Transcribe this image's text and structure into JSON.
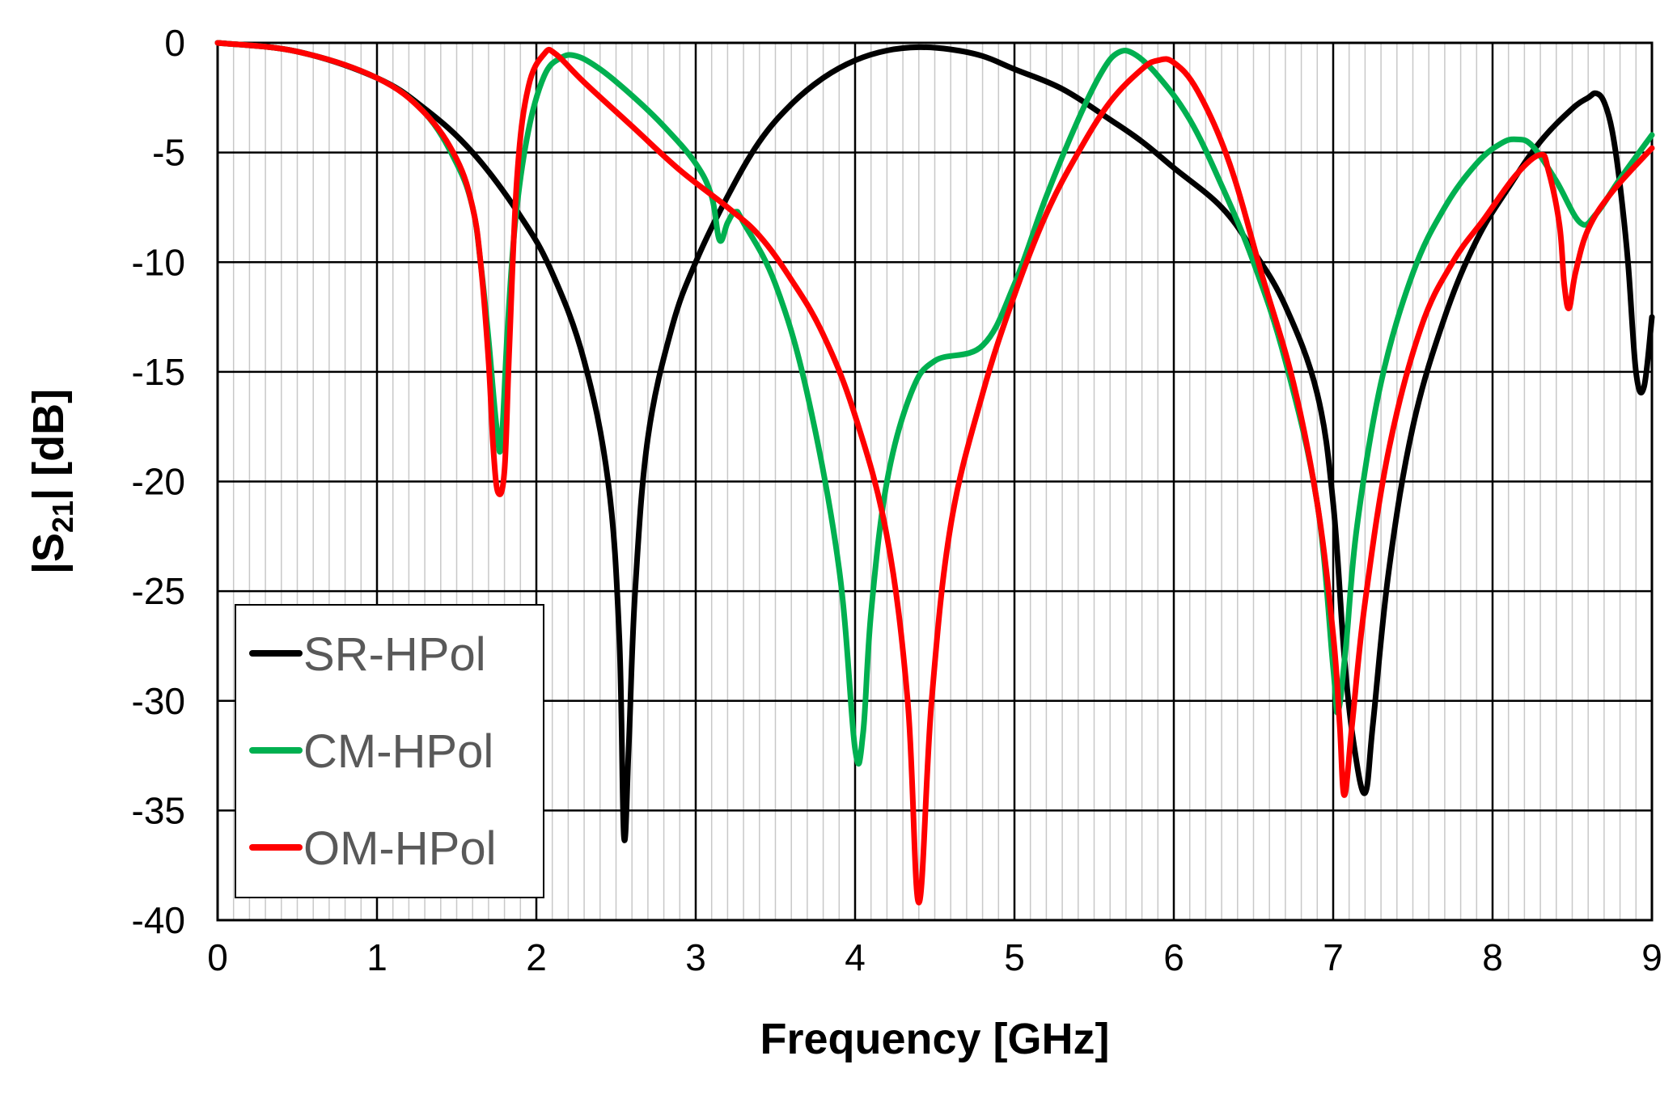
{
  "chart_data": {
    "type": "line",
    "xlabel": "Frequency [GHz]",
    "ylabel": {
      "prefix": "|S",
      "subscript": "21",
      "suffix": "| [dB]"
    },
    "xlim": [
      0,
      9
    ],
    "ylim": [
      -40,
      0
    ],
    "x_major_step": 1,
    "x_minor_step": 0.1,
    "y_major_step": 5,
    "x_ticks": [
      "0",
      "1",
      "2",
      "3",
      "4",
      "5",
      "6",
      "7",
      "8",
      "9"
    ],
    "y_ticks": [
      "0",
      "-5",
      "-10",
      "-15",
      "-20",
      "-25",
      "-30",
      "-35",
      "-40"
    ],
    "grid": true,
    "legend_position": "bottom-left",
    "series": [
      {
        "name": "SR-HPol",
        "color": "#000000",
        "points": [
          [
            0,
            0
          ],
          [
            0.5,
            -0.4
          ],
          [
            1,
            -1.6
          ],
          [
            1.3,
            -3
          ],
          [
            1.6,
            -5
          ],
          [
            1.9,
            -7.9
          ],
          [
            2.1,
            -10.5
          ],
          [
            2.3,
            -14.5
          ],
          [
            2.45,
            -20
          ],
          [
            2.52,
            -27
          ],
          [
            2.55,
            -36.2
          ],
          [
            2.58,
            -32
          ],
          [
            2.62,
            -25
          ],
          [
            2.7,
            -18
          ],
          [
            2.85,
            -13
          ],
          [
            3.0,
            -10
          ],
          [
            3.2,
            -7
          ],
          [
            3.4,
            -4.5
          ],
          [
            3.6,
            -2.8
          ],
          [
            3.8,
            -1.6
          ],
          [
            4.0,
            -0.8
          ],
          [
            4.2,
            -0.35
          ],
          [
            4.4,
            -0.2
          ],
          [
            4.6,
            -0.3
          ],
          [
            4.8,
            -0.6
          ],
          [
            5.0,
            -1.2
          ],
          [
            5.3,
            -2.1
          ],
          [
            5.6,
            -3.5
          ],
          [
            5.8,
            -4.5
          ],
          [
            6.0,
            -5.7
          ],
          [
            6.3,
            -7.5
          ],
          [
            6.5,
            -9.5
          ],
          [
            6.7,
            -12
          ],
          [
            6.9,
            -16
          ],
          [
            7.0,
            -21
          ],
          [
            7.07,
            -28
          ],
          [
            7.13,
            -32
          ],
          [
            7.2,
            -34.2
          ],
          [
            7.25,
            -31
          ],
          [
            7.35,
            -24
          ],
          [
            7.5,
            -17.5
          ],
          [
            7.7,
            -12.5
          ],
          [
            7.9,
            -9
          ],
          [
            8.1,
            -6.6
          ],
          [
            8.3,
            -4.5
          ],
          [
            8.5,
            -3
          ],
          [
            8.6,
            -2.5
          ],
          [
            8.65,
            -2.3
          ],
          [
            8.7,
            -2.7
          ],
          [
            8.75,
            -4
          ],
          [
            8.8,
            -6.5
          ],
          [
            8.85,
            -10
          ],
          [
            8.9,
            -15
          ],
          [
            8.95,
            -15.7
          ],
          [
            9.0,
            -12.5
          ]
        ]
      },
      {
        "name": "CM-HPol",
        "color": "#00b050",
        "points": [
          [
            0,
            0
          ],
          [
            0.5,
            -0.4
          ],
          [
            1,
            -1.6
          ],
          [
            1.3,
            -3.2
          ],
          [
            1.5,
            -5.5
          ],
          [
            1.6,
            -7.5
          ],
          [
            1.65,
            -10
          ],
          [
            1.7,
            -13.5
          ],
          [
            1.75,
            -17.5
          ],
          [
            1.78,
            -18.3
          ],
          [
            1.82,
            -13
          ],
          [
            1.87,
            -8
          ],
          [
            1.95,
            -4
          ],
          [
            2.05,
            -1.5
          ],
          [
            2.15,
            -0.7
          ],
          [
            2.25,
            -0.6
          ],
          [
            2.4,
            -1.2
          ],
          [
            2.6,
            -2.4
          ],
          [
            2.8,
            -3.8
          ],
          [
            3.0,
            -5.5
          ],
          [
            3.1,
            -7
          ],
          [
            3.15,
            -9
          ],
          [
            3.2,
            -8.2
          ],
          [
            3.25,
            -7.7
          ],
          [
            3.3,
            -8.2
          ],
          [
            3.5,
            -11
          ],
          [
            3.7,
            -16
          ],
          [
            3.9,
            -24
          ],
          [
            4.0,
            -32.2
          ],
          [
            4.05,
            -31.5
          ],
          [
            4.1,
            -26
          ],
          [
            4.2,
            -20
          ],
          [
            4.35,
            -16
          ],
          [
            4.5,
            -14.5
          ],
          [
            4.8,
            -13.8
          ],
          [
            5.0,
            -11
          ],
          [
            5.2,
            -7
          ],
          [
            5.4,
            -3.5
          ],
          [
            5.55,
            -1.3
          ],
          [
            5.65,
            -0.45
          ],
          [
            5.75,
            -0.5
          ],
          [
            5.9,
            -1.5
          ],
          [
            6.1,
            -3.5
          ],
          [
            6.3,
            -6.5
          ],
          [
            6.5,
            -10
          ],
          [
            6.7,
            -14.5
          ],
          [
            6.9,
            -21
          ],
          [
            7.0,
            -28.5
          ],
          [
            7.03,
            -30.5
          ],
          [
            7.08,
            -27.5
          ],
          [
            7.15,
            -22
          ],
          [
            7.3,
            -15.5
          ],
          [
            7.5,
            -10.5
          ],
          [
            7.7,
            -7.5
          ],
          [
            7.9,
            -5.5
          ],
          [
            8.05,
            -4.6
          ],
          [
            8.15,
            -4.4
          ],
          [
            8.25,
            -4.7
          ],
          [
            8.4,
            -6.3
          ],
          [
            8.55,
            -8.2
          ],
          [
            8.65,
            -7.8
          ],
          [
            8.8,
            -6.2
          ],
          [
            9.0,
            -4.2
          ]
        ]
      },
      {
        "name": "OM-HPol",
        "color": "#ff0000",
        "points": [
          [
            0,
            0
          ],
          [
            0.5,
            -0.4
          ],
          [
            1,
            -1.6
          ],
          [
            1.3,
            -3.2
          ],
          [
            1.5,
            -5.3
          ],
          [
            1.6,
            -7.5
          ],
          [
            1.65,
            -10
          ],
          [
            1.7,
            -14.5
          ],
          [
            1.73,
            -18.5
          ],
          [
            1.76,
            -20.5
          ],
          [
            1.8,
            -19.5
          ],
          [
            1.83,
            -14
          ],
          [
            1.88,
            -6
          ],
          [
            1.95,
            -2
          ],
          [
            2.05,
            -0.5
          ],
          [
            2.12,
            -0.5
          ],
          [
            2.3,
            -1.8
          ],
          [
            2.6,
            -3.8
          ],
          [
            2.9,
            -5.8
          ],
          [
            3.2,
            -7.5
          ],
          [
            3.4,
            -8.8
          ],
          [
            3.6,
            -10.8
          ],
          [
            3.8,
            -13.3
          ],
          [
            4.0,
            -17
          ],
          [
            4.2,
            -22.5
          ],
          [
            4.33,
            -30
          ],
          [
            4.4,
            -39.2
          ],
          [
            4.48,
            -30
          ],
          [
            4.6,
            -22
          ],
          [
            4.8,
            -16
          ],
          [
            5.0,
            -11.5
          ],
          [
            5.2,
            -7.8
          ],
          [
            5.4,
            -5
          ],
          [
            5.6,
            -2.7
          ],
          [
            5.8,
            -1.2
          ],
          [
            5.9,
            -0.8
          ],
          [
            6.0,
            -0.9
          ],
          [
            6.15,
            -2.2
          ],
          [
            6.35,
            -5.5
          ],
          [
            6.55,
            -10.5
          ],
          [
            6.75,
            -15.5
          ],
          [
            6.9,
            -21
          ],
          [
            7.0,
            -27
          ],
          [
            7.04,
            -31
          ],
          [
            7.07,
            -34.3
          ],
          [
            7.12,
            -31
          ],
          [
            7.2,
            -25.5
          ],
          [
            7.35,
            -18.5
          ],
          [
            7.55,
            -13
          ],
          [
            7.75,
            -10
          ],
          [
            7.95,
            -8
          ],
          [
            8.15,
            -6
          ],
          [
            8.3,
            -5.1
          ],
          [
            8.35,
            -5.8
          ],
          [
            8.42,
            -8.3
          ],
          [
            8.45,
            -11
          ],
          [
            8.48,
            -12.1
          ],
          [
            8.52,
            -10.5
          ],
          [
            8.6,
            -8.5
          ],
          [
            8.75,
            -6.8
          ],
          [
            9.0,
            -4.8
          ]
        ]
      }
    ]
  }
}
